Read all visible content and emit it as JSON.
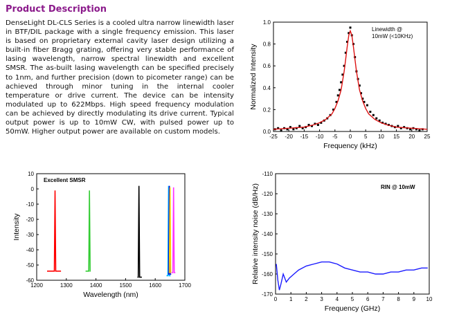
{
  "product": {
    "heading": "Product Description",
    "description": "DenseLight DL-CLS Series is a cooled ultra narrow linewidth laser in BTF/DIL package with a single frequency emission. This laser is based on proprietary external cavity laser design utilizing a built-in fiber Bragg grating, offering very stable performance of lasing wavelength, narrow spectral linewidth and excellent SMSR. The as-built lasing wavelength can be specified precisely to 1nm, and further precision (down to picometer range) can be achieved through minor tuning in the internal cooler temperature or drive current. The device can be intensity modulated up to 622Mbps. High speed frequency modulation can be achieved by directly modulating its drive current. Typical output power is up to 10mW CW, with pulsed power up to 50mW. Higher output power are available on custom models."
  },
  "chart_data": [
    {
      "id": "linewidth",
      "type": "scatter",
      "annotation": [
        "Linewidth @",
        "10mW (<10KHz)"
      ],
      "xlabel": "Frequency (kHz)",
      "ylabel": "Normalized Intensity",
      "xlim": [
        -25,
        25
      ],
      "ylim": [
        0,
        1.0
      ],
      "x_ticks": [
        -25,
        -20,
        -15,
        -10,
        -5,
        0,
        5,
        10,
        15,
        20,
        25
      ],
      "y_ticks": [
        0.0,
        0.2,
        0.4,
        0.6,
        0.8,
        1.0
      ],
      "y_tick_labels": [
        "0.0",
        "0.2",
        "0.4",
        "0.6",
        "0.8",
        "1.0"
      ],
      "series": [
        {
          "kind": "points",
          "color": "#000000",
          "x": [
            -24.5,
            -23.5,
            -22.5,
            -21.5,
            -20.5,
            -19.5,
            -18.5,
            -17.5,
            -16.5,
            -15.5,
            -14.5,
            -13.5,
            -12.5,
            -11.5,
            -10.5,
            -9.5,
            -8.5,
            -7.5,
            -6.5,
            -5.5,
            -4.5,
            -4,
            -3.5,
            -3,
            -2.5,
            -2,
            -1.5,
            -1,
            -0.5,
            0,
            0.5,
            1,
            1.5,
            2,
            2.5,
            3,
            3.5,
            4,
            4.5,
            5.5,
            6.5,
            7.5,
            8.5,
            9.5,
            10.5,
            11.5,
            12.5,
            13.5,
            14.5,
            15.5,
            16.5,
            17.5,
            18.5,
            19.5,
            20.5,
            21.5,
            22.5,
            23.5
          ],
          "y": [
            0.02,
            0.03,
            0.01,
            0.03,
            0.02,
            0.04,
            0.02,
            0.03,
            0.05,
            0.03,
            0.04,
            0.06,
            0.05,
            0.07,
            0.06,
            0.08,
            0.1,
            0.12,
            0.15,
            0.2,
            0.27,
            0.33,
            0.38,
            0.45,
            0.52,
            0.6,
            0.72,
            0.82,
            0.9,
            0.95,
            0.88,
            0.8,
            0.68,
            0.55,
            0.48,
            0.42,
            0.35,
            0.3,
            0.27,
            0.24,
            0.18,
            0.15,
            0.12,
            0.1,
            0.08,
            0.07,
            0.06,
            0.05,
            0.04,
            0.05,
            0.03,
            0.04,
            0.03,
            0.02,
            0.03,
            0.02,
            0.01,
            0.02
          ]
        },
        {
          "kind": "fit",
          "color": "#dd1111",
          "x": [
            -25,
            -20,
            -15,
            -12,
            -10,
            -8,
            -6,
            -5,
            -4,
            -3,
            -2,
            -1.5,
            -1,
            -0.5,
            0,
            0.5,
            1,
            1.5,
            2,
            3,
            4,
            5,
            6,
            8,
            10,
            12,
            15,
            20,
            25
          ],
          "y": [
            0.02,
            0.03,
            0.04,
            0.06,
            0.08,
            0.11,
            0.16,
            0.21,
            0.28,
            0.38,
            0.55,
            0.66,
            0.78,
            0.88,
            0.92,
            0.88,
            0.78,
            0.66,
            0.55,
            0.38,
            0.28,
            0.21,
            0.16,
            0.11,
            0.08,
            0.06,
            0.04,
            0.03,
            0.02
          ]
        }
      ]
    },
    {
      "id": "smsr",
      "type": "line",
      "annotation": [
        "Excellent SMSR"
      ],
      "xlabel": "Wavelength (nm)",
      "ylabel": "Intensity",
      "xlim": [
        1200,
        1700
      ],
      "ylim": [
        -60,
        10
      ],
      "x_ticks": [
        1200,
        1300,
        1400,
        1500,
        1600,
        1700
      ],
      "y_ticks": [
        10,
        0,
        -10,
        -20,
        -30,
        -40,
        -50,
        -60
      ],
      "y_tick_labels": [
        "10",
        "0",
        "-10",
        "-20",
        "-30",
        "-40",
        "-50",
        "-60"
      ],
      "series": [
        {
          "color": "#ff0000",
          "floor_x": [
            1235,
            1282
          ],
          "floor_y": -54,
          "peak_x": 1262,
          "peak_y": -1
        },
        {
          "color": "#33cc33",
          "floor_x": [
            1365,
            1382
          ],
          "floor_y": -54,
          "peak_x": 1378,
          "peak_y": -1
        },
        {
          "color": "#000000",
          "floor_x": [
            1540,
            1555
          ],
          "floor_y": -58,
          "peak_x": 1545,
          "peak_y": 2
        },
        {
          "color": "#00b0ff",
          "floor_x": [
            1638,
            1652
          ],
          "floor_y": -57,
          "peak_x": 1645,
          "peak_y": 2
        },
        {
          "color": "#0000dd",
          "floor_x": [
            1644,
            1654
          ],
          "floor_y": -56,
          "peak_x": 1648,
          "peak_y": 2
        },
        {
          "color": "#ffcc00",
          "floor_x": [
            1646,
            1653
          ],
          "floor_y": -55,
          "peak_x": 1650,
          "peak_y": 1
        },
        {
          "color": "#ff33ff",
          "floor_x": [
            1655,
            1668
          ],
          "floor_y": -55,
          "peak_x": 1662,
          "peak_y": 1
        }
      ]
    },
    {
      "id": "rin",
      "type": "line",
      "annotation": [
        "RIN @ 10mW"
      ],
      "xlabel": "Frequency (GHz)",
      "ylabel": "Relative intensity noise (dB/Hz)",
      "xlim": [
        0,
        10
      ],
      "ylim": [
        -170,
        -110
      ],
      "x_ticks": [
        0,
        1,
        2,
        3,
        4,
        5,
        6,
        7,
        8,
        9,
        10
      ],
      "y_ticks": [
        -110,
        -120,
        -130,
        -140,
        -150,
        -160,
        -170
      ],
      "y_tick_labels": [
        "-110",
        "-120",
        "-130",
        "-140",
        "-150",
        "-160",
        "-170"
      ],
      "series": [
        {
          "color": "#1a1aff",
          "x": [
            0.05,
            0.15,
            0.25,
            0.35,
            0.5,
            0.7,
            0.9,
            1.2,
            1.5,
            2.0,
            2.5,
            3.0,
            3.5,
            4.0,
            4.5,
            5.0,
            5.5,
            6.0,
            6.5,
            7.0,
            7.5,
            8.0,
            8.5,
            9.0,
            9.5,
            9.9
          ],
          "y": [
            -155,
            -163,
            -168,
            -165,
            -160,
            -164,
            -162,
            -160,
            -158,
            -156,
            -155,
            -154,
            -154,
            -155,
            -157,
            -158,
            -159,
            -159,
            -160,
            -160,
            -159,
            -159,
            -158,
            -158,
            -157,
            -157
          ]
        }
      ]
    }
  ]
}
